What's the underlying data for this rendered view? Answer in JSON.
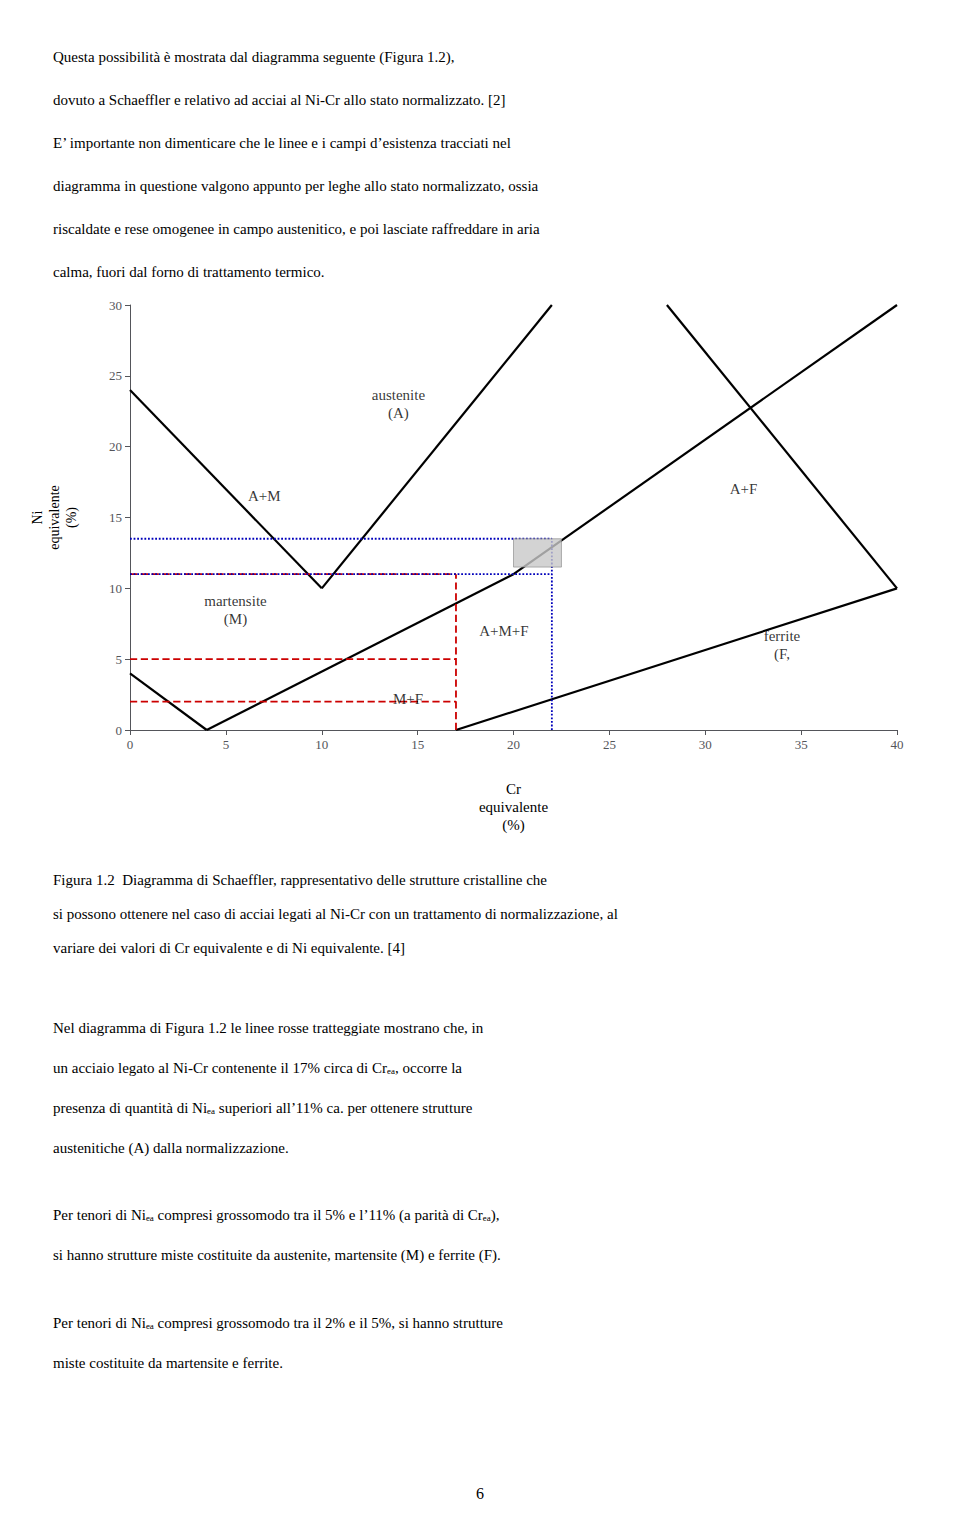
{
  "chart_data": {
    "type": "line",
    "xlabel": "Cr\nequivalente\n(%)",
    "ylabel": "Ni\nequivalente\n(%)",
    "xlim": [
      0,
      40
    ],
    "ylim": [
      0,
      30
    ],
    "xticks": [
      0,
      5,
      10,
      15,
      20,
      25,
      30,
      35,
      40
    ],
    "yticks": [
      0,
      5,
      10,
      15,
      20,
      25,
      30
    ],
    "grid": false,
    "series": [
      {
        "color": "#000000",
        "line_style": "solid",
        "segments": [
          {
            "x": [
              0,
              10
            ],
            "y": [
              24,
              10
            ]
          },
          {
            "x": [
              10,
              22
            ],
            "y": [
              10,
              30
            ]
          },
          {
            "x": [
              0,
              4
            ],
            "y": [
              4,
              0
            ]
          },
          {
            "x": [
              4,
              20
            ],
            "y": [
              0,
              11
            ]
          },
          {
            "x": [
              20,
              40
            ],
            "y": [
              11,
              30
            ]
          },
          {
            "x": [
              17,
              40
            ],
            "y": [
              0,
              10
            ]
          },
          {
            "x": [
              28,
              40
            ],
            "y": [
              30,
              10
            ]
          }
        ]
      },
      {
        "color": "#cc0000",
        "line_style": "dashed",
        "segments": [
          {
            "x": [
              0,
              17
            ],
            "y": [
              11,
              11
            ]
          },
          {
            "x": [
              0,
              17
            ],
            "y": [
              5,
              5
            ]
          },
          {
            "x": [
              0,
              17
            ],
            "y": [
              2,
              2
            ]
          },
          {
            "x": [
              17,
              17
            ],
            "y": [
              0,
              11
            ]
          }
        ]
      },
      {
        "color": "#0000bb",
        "line_style": "dotted",
        "segments": [
          {
            "x": [
              0,
              22
            ],
            "y": [
              13.5,
              13.5
            ]
          },
          {
            "x": [
              0,
              22
            ],
            "y": [
              11,
              11
            ]
          },
          {
            "x": [
              22,
              22
            ],
            "y": [
              0,
              13.5
            ]
          }
        ]
      }
    ],
    "rectangles": [
      {
        "x": 20,
        "y": 11.5,
        "w": 2.5,
        "h": 2.0,
        "color": "#c8c8c8"
      }
    ],
    "annotations": [
      {
        "text": "austenite\n(A)",
        "x": 14,
        "y": 23
      },
      {
        "text": "A+M",
        "x": 7,
        "y": 16.5
      },
      {
        "text": "A+F",
        "x": 32,
        "y": 17
      },
      {
        "text": "martensite\n(M)",
        "x": 5.5,
        "y": 8.5
      },
      {
        "text": "A+M+F",
        "x": 19.5,
        "y": 7.0
      },
      {
        "text": "M+F",
        "x": 14.5,
        "y": 2.2
      },
      {
        "text": "ferrite\n(F,",
        "x": 34,
        "y": 6
      }
    ]
  },
  "page_text": {
    "top": [
      "Questa possibilità è mostrata dal diagramma seguente (Figura 1.2),",
      "dovuto a Schaeffler e relativo ad acciai al Ni-Cr allo stato normalizzato. [2]",
      "E’ importante non dimenticare che le linee e i campi d’esistenza tracciati nel",
      "diagramma in questione valgono appunto per leghe allo stato normalizzato, ossia",
      "riscaldate e rese omogenee in campo austenitico, e poi lasciate raffreddare in aria",
      "calma, fuori dal forno di trattamento termico."
    ],
    "caption": [
      "Figura 1.2  Diagramma di Schaeffler, rappresentativo delle strutture cristalline che",
      "si possono ottenere nel caso di acciai legati al Ni-Cr con un trattamento di normalizzazione, al",
      "variare dei valori di Cr equivalente e di Ni equivalente. [4]"
    ],
    "body": [
      [
        "Nel diagramma di Figura 1.2 le linee rosse tratteggiate mostrano che, in",
        "un acciaio legato al Ni-Cr contenente il 17% circa di Crₑₐ, occorre la",
        "presenza di quantità di Niₑₐ superiori all’11% ca. per ottenere strutture",
        "austenitiche (A) dalla normalizzazione."
      ],
      [
        "Per tenori di Niₑₐ compresi grossomodo tra il 5% e l’11% (a parità di Crₑₐ),",
        "si hanno strutture miste costituite da austenite, martensite (M) e ferrite (F)."
      ],
      [
        "Per tenori di Niₑₐ compresi grossomodo tra il 2% e il 5%, si hanno strutture",
        "miste costituite da martensite e ferrite."
      ]
    ],
    "page_number": 6
  }
}
